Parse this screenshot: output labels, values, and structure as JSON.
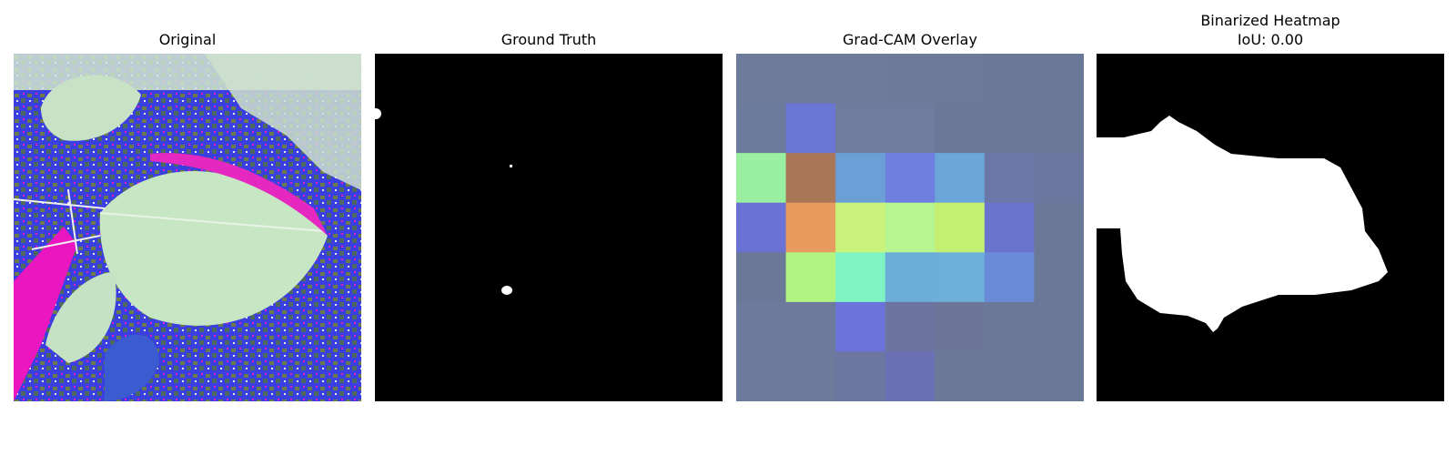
{
  "panels": [
    {
      "title": "Original",
      "image": "photo of leaves with false-color (blue/magenta) background"
    },
    {
      "title": "Ground Truth",
      "image": "binary mask, black background with small white spots"
    },
    {
      "title": "Grad-CAM Overlay",
      "image": "7x7 heatmap overlay blocks"
    },
    {
      "title": "Binarized Heatmap",
      "subtitle": "IoU: 0.00",
      "image": "white blob mask on black"
    }
  ],
  "heatmap_grid": {
    "rows": 7,
    "cols": 7,
    "colors": [
      [
        "#6f7b9b",
        "#6f7b9b",
        "#6f7b9b",
        "#6d7a9a",
        "#6d7a9a",
        "#6b7898",
        "#6b7898"
      ],
      [
        "#6c7a9c",
        "#6b77d4",
        "#707c9d",
        "#707c9d",
        "#6b7898",
        "#6b7898",
        "#6b7898"
      ],
      [
        "#9af0a0",
        "#a97758",
        "#6aa0d6",
        "#6f7fe0",
        "#6ba6d8",
        "#6a78a8",
        "#6c77a0"
      ],
      [
        "#6a72d4",
        "#e79b5f",
        "#c9f37a",
        "#b6f58f",
        "#c4f071",
        "#6b74cc",
        "#6b7898"
      ],
      [
        "#6b7898",
        "#b2f482",
        "#80f5c4",
        "#6caed7",
        "#6cb0da",
        "#6a8cd8",
        "#6b7898"
      ],
      [
        "#6d7a9b",
        "#6d7a9b",
        "#6b74d8",
        "#6e74a0",
        "#6d7698",
        "#6b7898",
        "#6b7898"
      ],
      [
        "#6d7a9b",
        "#6d7a9b",
        "#6d76a0",
        "#6b70b4",
        "#6b7898",
        "#6b7898",
        "#6b7898"
      ]
    ]
  }
}
